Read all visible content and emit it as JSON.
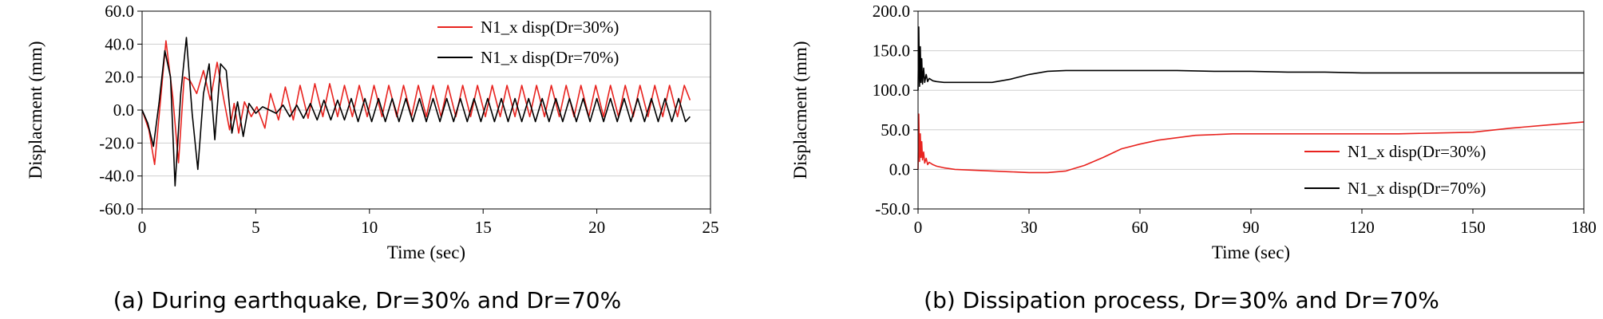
{
  "chart_data": [
    {
      "type": "line",
      "caption": "(a) During earthquake, Dr=30% and Dr=70%",
      "xlabel": "Time (sec)",
      "ylabel": "Displacment (mm)",
      "xlim": [
        0,
        25
      ],
      "ylim": [
        -60,
        60
      ],
      "x_ticks": [
        0,
        5,
        10,
        15,
        20,
        25
      ],
      "y_ticks": [
        -60,
        -40,
        -20,
        0,
        20,
        40,
        60
      ],
      "x_tick_labels": [
        "0",
        "5",
        "10",
        "15",
        "20",
        "25"
      ],
      "y_tick_labels": [
        "-60.0",
        "-40.0",
        "-20.0",
        "0.0",
        "20.0",
        "40.0",
        "60.0"
      ],
      "grid": "horizontal",
      "legend_position": "top-right",
      "series": [
        {
          "name": "N1_x disp(Dr=30%)",
          "color": "#e8231f",
          "x": [
            0,
            0.3,
            0.55,
            0.85,
            1.05,
            1.35,
            1.6,
            1.85,
            2.1,
            2.4,
            2.7,
            3.0,
            3.3,
            3.6,
            3.85,
            4.05,
            4.25,
            4.5,
            4.8,
            5.05,
            5.4,
            5.65,
            6.0,
            6.3,
            6.65,
            6.95,
            7.3,
            7.6,
            7.95,
            8.25,
            8.6,
            8.9,
            9.25,
            9.55,
            9.9,
            10.2,
            10.55,
            10.85,
            11.2,
            11.5,
            11.85,
            12.15,
            12.5,
            12.8,
            13.15,
            13.45,
            13.8,
            14.1,
            14.45,
            14.75,
            15.1,
            15.4,
            15.75,
            16.05,
            16.4,
            16.7,
            17.05,
            17.35,
            17.7,
            18.0,
            18.35,
            18.65,
            19.0,
            19.3,
            19.65,
            19.95,
            20.3,
            20.6,
            20.95,
            21.25,
            21.6,
            21.9,
            22.25,
            22.55,
            22.9,
            23.2,
            23.55,
            23.85,
            24.1
          ],
          "y": [
            0,
            -12,
            -33,
            12,
            42,
            8,
            -32,
            20,
            18,
            10,
            24,
            6,
            29,
            6,
            -12,
            4,
            -14,
            5,
            -4,
            2,
            -11,
            10,
            -6,
            14,
            -6,
            15,
            -5,
            16,
            -4,
            16,
            -4,
            15,
            -4,
            15,
            -4,
            15,
            -4,
            15,
            -4,
            15,
            -4,
            15,
            -4,
            15,
            -4,
            15,
            -4,
            15,
            -4,
            15,
            -4,
            15,
            -4,
            15,
            -4,
            15,
            -4,
            15,
            -4,
            15,
            -4,
            15,
            -4,
            15,
            -4,
            15,
            -4,
            15,
            -4,
            15,
            -4,
            15,
            -4,
            15,
            -4,
            15,
            -4,
            15,
            6
          ]
        },
        {
          "name": "N1_x disp(Dr=70%)",
          "color": "#000000",
          "x": [
            0,
            0.25,
            0.5,
            0.75,
            1.0,
            1.25,
            1.45,
            1.7,
            1.95,
            2.2,
            2.45,
            2.7,
            2.95,
            3.2,
            3.45,
            3.7,
            3.95,
            4.2,
            4.45,
            4.7,
            5.0,
            5.3,
            5.6,
            5.9,
            6.2,
            6.5,
            6.8,
            7.1,
            7.4,
            7.7,
            8.0,
            8.3,
            8.6,
            8.9,
            9.2,
            9.5,
            9.8,
            10.1,
            10.4,
            10.7,
            11.0,
            11.3,
            11.6,
            11.9,
            12.2,
            12.5,
            12.8,
            13.1,
            13.4,
            13.7,
            14.0,
            14.3,
            14.6,
            14.9,
            15.2,
            15.5,
            15.8,
            16.1,
            16.4,
            16.7,
            17.0,
            17.3,
            17.6,
            17.9,
            18.2,
            18.5,
            18.8,
            19.1,
            19.4,
            19.7,
            20.0,
            20.3,
            20.6,
            20.9,
            21.2,
            21.5,
            21.8,
            22.1,
            22.4,
            22.7,
            23.0,
            23.3,
            23.6,
            23.9,
            24.1
          ],
          "y": [
            0,
            -8,
            -22,
            5,
            36,
            20,
            -46,
            10,
            44,
            -2,
            -36,
            10,
            28,
            -18,
            28,
            24,
            -14,
            5,
            -16,
            4,
            -2,
            2,
            0,
            -2,
            3,
            -4,
            3,
            -5,
            4,
            -6,
            6,
            -6,
            6,
            -6,
            7,
            -7,
            7,
            -7,
            7,
            -7,
            7,
            -7,
            7,
            -7,
            7,
            -7,
            7,
            -7,
            7,
            -7,
            7,
            -7,
            7,
            -7,
            7,
            -7,
            7,
            -7,
            7,
            -7,
            7,
            -7,
            7,
            -7,
            7,
            -7,
            7,
            -7,
            7,
            -7,
            7,
            -7,
            7,
            -7,
            7,
            -7,
            7,
            -7,
            7,
            -7,
            7,
            -7,
            7,
            -7,
            -4
          ]
        }
      ]
    },
    {
      "type": "line",
      "caption": "(b) Dissipation process, Dr=30% and Dr=70%",
      "xlabel": "Time (sec)",
      "ylabel": "Displacment (mm)",
      "xlim": [
        0,
        180
      ],
      "ylim": [
        -50,
        200
      ],
      "x_ticks": [
        0,
        30,
        60,
        90,
        120,
        150,
        180
      ],
      "y_ticks": [
        -50,
        0,
        50,
        100,
        150,
        200
      ],
      "x_tick_labels": [
        "0",
        "30",
        "60",
        "90",
        "120",
        "150",
        "180"
      ],
      "y_tick_labels": [
        "-50.0",
        "0.0",
        "50.0",
        "100.0",
        "150.0",
        "200.0"
      ],
      "grid": "horizontal",
      "legend_position": "bottom-right",
      "series": [
        {
          "name": "N1_x disp(Dr=30%)",
          "color": "#e8231f",
          "x": [
            0,
            0.2,
            0.4,
            0.6,
            0.8,
            1.0,
            1.2,
            1.5,
            1.8,
            2.2,
            2.6,
            3.0,
            4,
            5,
            7,
            10,
            15,
            20,
            25,
            30,
            35,
            40,
            45,
            50,
            55,
            60,
            65,
            70,
            75,
            80,
            85,
            90,
            95,
            100,
            110,
            120,
            130,
            140,
            150,
            160,
            170,
            180
          ],
          "y": [
            0,
            70,
            10,
            45,
            15,
            35,
            12,
            22,
            8,
            14,
            6,
            9,
            6,
            4,
            2,
            0,
            -1,
            -2,
            -3,
            -4,
            -4,
            -2,
            5,
            15,
            26,
            32,
            37,
            40,
            43,
            44,
            45,
            45,
            45,
            45,
            45,
            45,
            45,
            46,
            47,
            52,
            56,
            60
          ]
        },
        {
          "name": "N1_x disp(Dr=70%)",
          "color": "#000000",
          "x": [
            0,
            0.2,
            0.4,
            0.6,
            0.8,
            1.0,
            1.2,
            1.5,
            1.8,
            2.2,
            2.6,
            3.0,
            4,
            5,
            7,
            10,
            15,
            20,
            25,
            30,
            35,
            40,
            45,
            50,
            60,
            70,
            80,
            90,
            100,
            110,
            120,
            130,
            140,
            150,
            160,
            170,
            180
          ],
          "y": [
            100,
            180,
            105,
            155,
            110,
            140,
            108,
            128,
            110,
            120,
            111,
            115,
            112,
            111,
            110,
            110,
            110,
            110,
            114,
            120,
            124,
            125,
            125,
            125,
            125,
            125,
            124,
            124,
            123,
            123,
            122,
            122,
            122,
            122,
            122,
            122,
            122
          ]
        }
      ]
    }
  ]
}
